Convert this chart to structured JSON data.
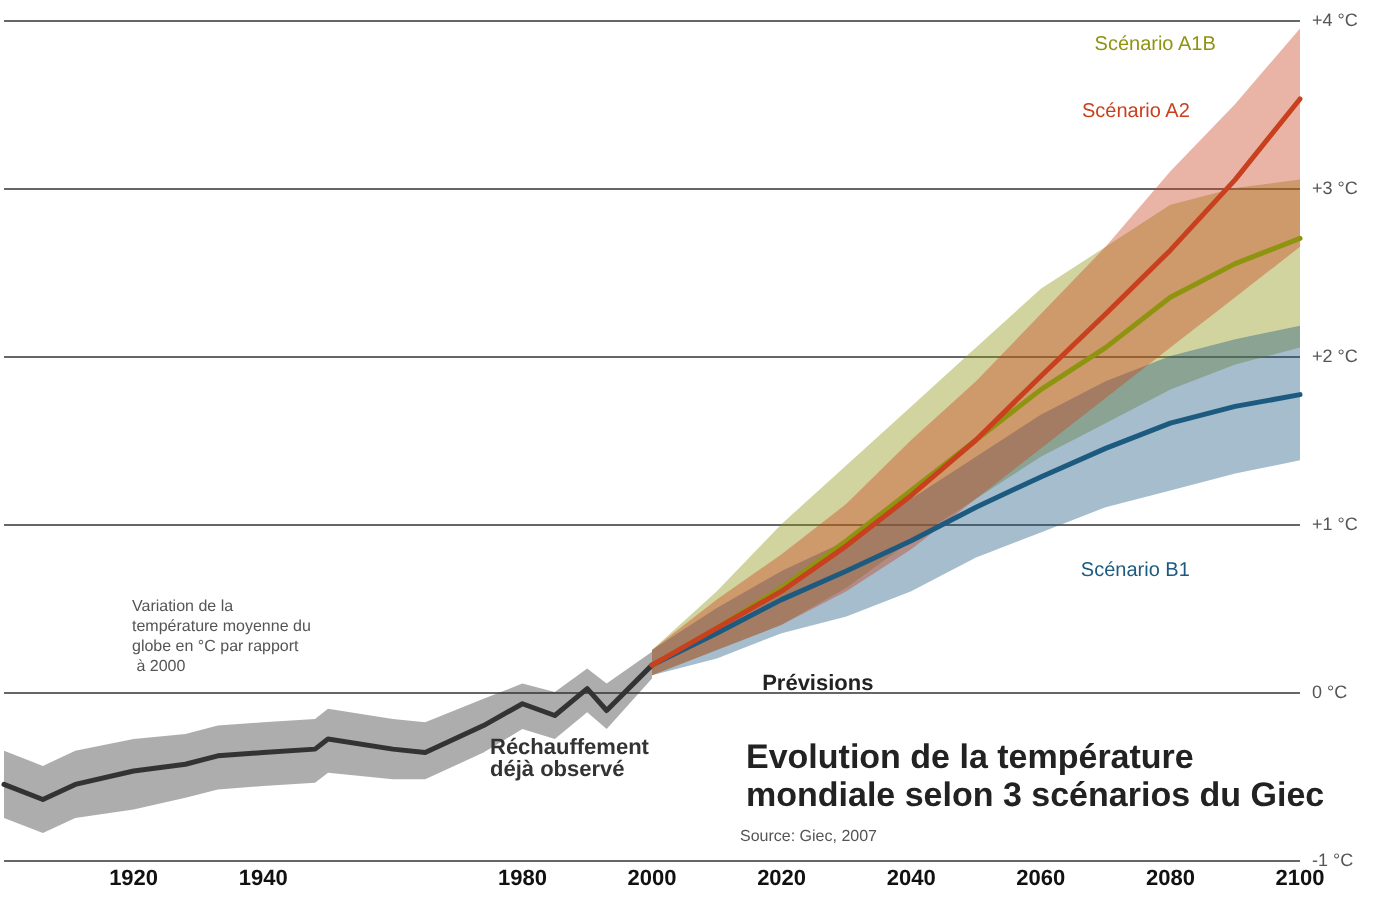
{
  "chart_data": {
    "type": "line",
    "title": "Evolution de la température mondiale selon 3 scénarios du Giec",
    "ylabel": "Variation de la température moyenne du globe en °C par rapport à 2000",
    "annotations": [
      "Prévisions",
      "Source: Giec, 2007"
    ],
    "xlim": [
      1900,
      2100
    ],
    "xticks": [
      1920,
      1940,
      1980,
      2000,
      2020,
      2040,
      2060,
      2080,
      2100
    ],
    "ylim": [
      -1,
      4
    ],
    "yticks": [
      {
        "value": -1,
        "label": "-1 °C"
      },
      {
        "value": 0,
        "label": "0 °C"
      },
      {
        "value": 1,
        "label": "+1 °C"
      },
      {
        "value": 2,
        "label": "+2 °C"
      },
      {
        "value": 3,
        "label": "+3 °C"
      },
      {
        "value": 4,
        "label": "+4 °C"
      }
    ],
    "grid": "y",
    "marker": "none",
    "line_style": "solid",
    "series": [
      {
        "name": "Réchauffement déjà observé",
        "color": "#333333",
        "x": [
          1900,
          1906,
          1911,
          1920,
          1928,
          1933,
          1940,
          1948,
          1950,
          1960,
          1965,
          1974,
          1980,
          1985,
          1990,
          1993,
          2000
        ],
        "values": [
          -0.55,
          -0.64,
          -0.55,
          -0.47,
          -0.43,
          -0.38,
          -0.36,
          -0.34,
          -0.28,
          -0.34,
          -0.36,
          -0.2,
          -0.07,
          -0.14,
          0.02,
          -0.11,
          0.16
        ],
        "lower": [
          -0.75,
          -0.84,
          -0.75,
          -0.7,
          -0.63,
          -0.58,
          -0.56,
          -0.54,
          -0.48,
          -0.52,
          -0.52,
          -0.36,
          -0.22,
          -0.28,
          -0.12,
          -0.22,
          0.08
        ],
        "upper": [
          -0.35,
          -0.44,
          -0.35,
          -0.28,
          -0.25,
          -0.2,
          -0.18,
          -0.16,
          -0.1,
          -0.16,
          -0.18,
          -0.04,
          0.05,
          0.0,
          0.14,
          0.05,
          0.24
        ]
      },
      {
        "name": "Scénario A1B",
        "color": "#8f9410",
        "x": [
          2000,
          2010,
          2020,
          2030,
          2040,
          2050,
          2060,
          2070,
          2080,
          2090,
          2100
        ],
        "values": [
          0.16,
          0.38,
          0.62,
          0.9,
          1.2,
          1.5,
          1.8,
          2.05,
          2.35,
          2.55,
          2.7
        ],
        "lower": [
          0.1,
          0.25,
          0.4,
          0.62,
          0.9,
          1.15,
          1.4,
          1.6,
          1.8,
          1.95,
          2.05
        ],
        "upper": [
          0.25,
          0.6,
          1.0,
          1.35,
          1.7,
          2.05,
          2.4,
          2.65,
          2.9,
          3.0,
          3.05
        ]
      },
      {
        "name": "Scénario B1",
        "color": "#1d5a80",
        "x": [
          2000,
          2010,
          2020,
          2030,
          2040,
          2050,
          2060,
          2070,
          2080,
          2090,
          2100
        ],
        "values": [
          0.16,
          0.35,
          0.55,
          0.72,
          0.9,
          1.1,
          1.28,
          1.45,
          1.6,
          1.7,
          1.77
        ],
        "lower": [
          0.1,
          0.2,
          0.35,
          0.45,
          0.6,
          0.8,
          0.95,
          1.1,
          1.2,
          1.3,
          1.38
        ],
        "upper": [
          0.25,
          0.5,
          0.72,
          0.9,
          1.15,
          1.4,
          1.65,
          1.85,
          2.0,
          2.1,
          2.18
        ]
      },
      {
        "name": "Scénario A2",
        "color": "#c8401e",
        "x": [
          2000,
          2010,
          2020,
          2030,
          2040,
          2050,
          2060,
          2070,
          2080,
          2090,
          2100
        ],
        "values": [
          0.16,
          0.38,
          0.6,
          0.87,
          1.17,
          1.5,
          1.88,
          2.25,
          2.63,
          3.05,
          3.53
        ],
        "lower": [
          0.1,
          0.25,
          0.4,
          0.6,
          0.85,
          1.15,
          1.45,
          1.75,
          2.05,
          2.35,
          2.65
        ],
        "upper": [
          0.25,
          0.55,
          0.82,
          1.12,
          1.5,
          1.85,
          2.25,
          2.65,
          3.1,
          3.5,
          3.95
        ]
      }
    ]
  }
}
